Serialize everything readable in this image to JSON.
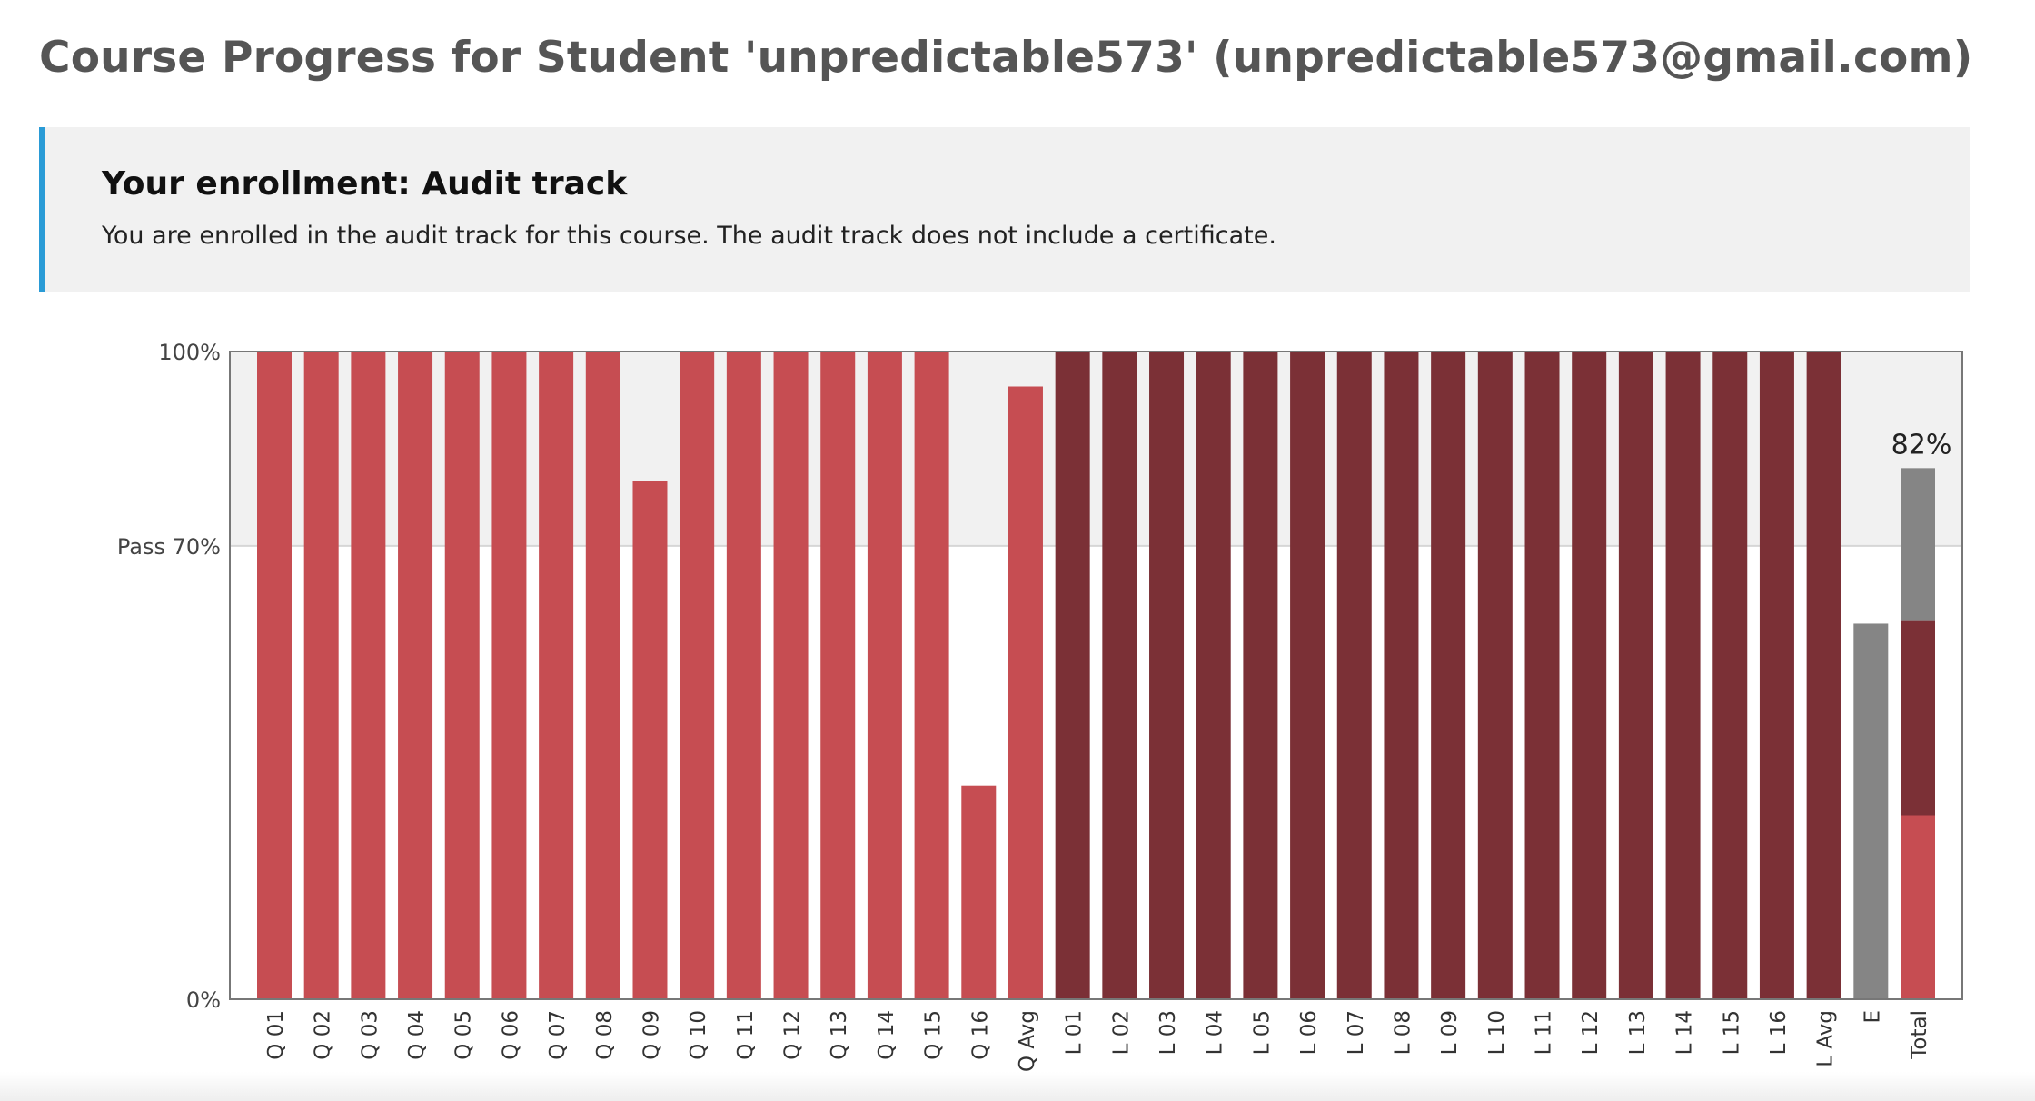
{
  "page": {
    "title": "Course Progress for Student 'unpredictable573' (unpredictable573@gmail.com)"
  },
  "enrollment": {
    "heading": "Your enrollment: Audit track",
    "message": "You are enrolled in the audit track for this course. The audit track does not include a certificate."
  },
  "colors": {
    "quiz": "#c64d52",
    "lab": "#7b3036",
    "exam": "#858585",
    "pass_zone": "#f1f1f1",
    "accent": "#2a9bd6"
  },
  "chart_data": {
    "type": "bar",
    "ylim": [
      0,
      100
    ],
    "y_ticks": [
      {
        "value": 0,
        "label": "0%"
      },
      {
        "value": 70,
        "label": "Pass 70%"
      },
      {
        "value": 100,
        "label": "100%"
      }
    ],
    "pass_threshold": 70,
    "categories": [
      "Q 01",
      "Q 02",
      "Q 03",
      "Q 04",
      "Q 05",
      "Q 06",
      "Q 07",
      "Q 08",
      "Q 09",
      "Q 10",
      "Q 11",
      "Q 12",
      "Q 13",
      "Q 14",
      "Q 15",
      "Q 16",
      "Q Avg",
      "L 01",
      "L 02",
      "L 03",
      "L 04",
      "L 05",
      "L 06",
      "L 07",
      "L 08",
      "L 09",
      "L 10",
      "L 11",
      "L 12",
      "L 13",
      "L 14",
      "L 15",
      "L 16",
      "L Avg",
      "E",
      "Total"
    ],
    "bars": [
      {
        "label": "Q 01",
        "value": 100,
        "group": "quiz"
      },
      {
        "label": "Q 02",
        "value": 100,
        "group": "quiz"
      },
      {
        "label": "Q 03",
        "value": 100,
        "group": "quiz"
      },
      {
        "label": "Q 04",
        "value": 100,
        "group": "quiz"
      },
      {
        "label": "Q 05",
        "value": 100,
        "group": "quiz"
      },
      {
        "label": "Q 06",
        "value": 100,
        "group": "quiz"
      },
      {
        "label": "Q 07",
        "value": 100,
        "group": "quiz"
      },
      {
        "label": "Q 08",
        "value": 100,
        "group": "quiz"
      },
      {
        "label": "Q 09",
        "value": 80,
        "group": "quiz"
      },
      {
        "label": "Q 10",
        "value": 100,
        "group": "quiz"
      },
      {
        "label": "Q 11",
        "value": 100,
        "group": "quiz"
      },
      {
        "label": "Q 12",
        "value": 100,
        "group": "quiz"
      },
      {
        "label": "Q 13",
        "value": 100,
        "group": "quiz"
      },
      {
        "label": "Q 14",
        "value": 100,
        "group": "quiz"
      },
      {
        "label": "Q 15",
        "value": 100,
        "group": "quiz"
      },
      {
        "label": "Q 16",
        "value": 33,
        "group": "quiz"
      },
      {
        "label": "Q Avg",
        "value": 94.6,
        "group": "quiz"
      },
      {
        "label": "L 01",
        "value": 100,
        "group": "lab"
      },
      {
        "label": "L 02",
        "value": 100,
        "group": "lab"
      },
      {
        "label": "L 03",
        "value": 100,
        "group": "lab"
      },
      {
        "label": "L 04",
        "value": 100,
        "group": "lab"
      },
      {
        "label": "L 05",
        "value": 100,
        "group": "lab"
      },
      {
        "label": "L 06",
        "value": 100,
        "group": "lab"
      },
      {
        "label": "L 07",
        "value": 100,
        "group": "lab"
      },
      {
        "label": "L 08",
        "value": 100,
        "group": "lab"
      },
      {
        "label": "L 09",
        "value": 100,
        "group": "lab"
      },
      {
        "label": "L 10",
        "value": 100,
        "group": "lab"
      },
      {
        "label": "L 11",
        "value": 100,
        "group": "lab"
      },
      {
        "label": "L 12",
        "value": 100,
        "group": "lab"
      },
      {
        "label": "L 13",
        "value": 100,
        "group": "lab"
      },
      {
        "label": "L 14",
        "value": 100,
        "group": "lab"
      },
      {
        "label": "L 15",
        "value": 100,
        "group": "lab"
      },
      {
        "label": "L 16",
        "value": 100,
        "group": "lab"
      },
      {
        "label": "L Avg",
        "value": 100,
        "group": "lab"
      },
      {
        "label": "E",
        "value": 58,
        "group": "exam"
      }
    ],
    "total": {
      "label": "Total",
      "value_label": "82%",
      "segments": [
        {
          "group": "quiz",
          "value": 28.4
        },
        {
          "group": "lab",
          "value": 30
        },
        {
          "group": "exam",
          "value": 23.6
        }
      ]
    }
  }
}
